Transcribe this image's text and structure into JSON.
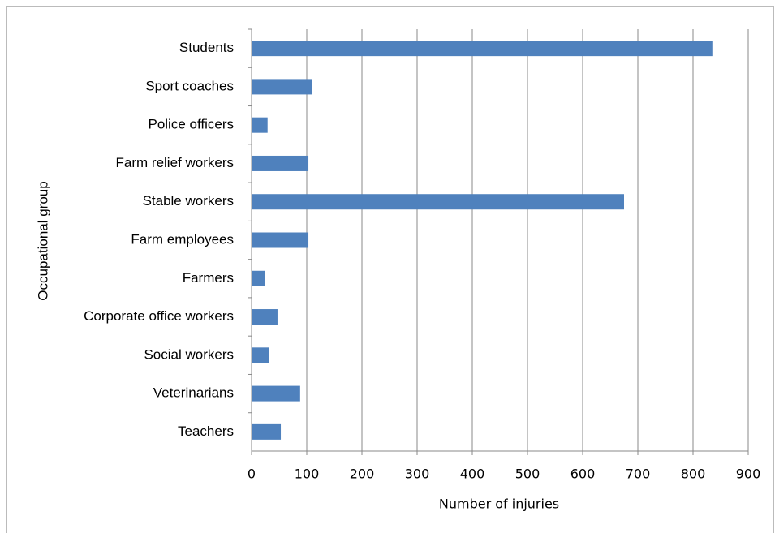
{
  "chart_data": {
    "type": "bar",
    "orientation": "horizontal",
    "x_label": "Number of injuries",
    "y_label": "Occupational group",
    "categories": [
      "Students",
      "Sport coaches",
      "Police officers",
      "Farm relief workers",
      "Stable workers",
      "Farm employees",
      "Farmers",
      "Corporate office workers",
      "Social workers",
      "Veterinarians",
      "Teachers"
    ],
    "values": [
      835,
      110,
      29,
      103,
      675,
      103,
      24,
      47,
      32,
      88,
      53
    ],
    "color": "#4f81bd",
    "xlim": [
      0,
      900
    ],
    "xticks": [
      0,
      100,
      200,
      300,
      400,
      500,
      600,
      700,
      800,
      900
    ],
    "grid": true
  }
}
